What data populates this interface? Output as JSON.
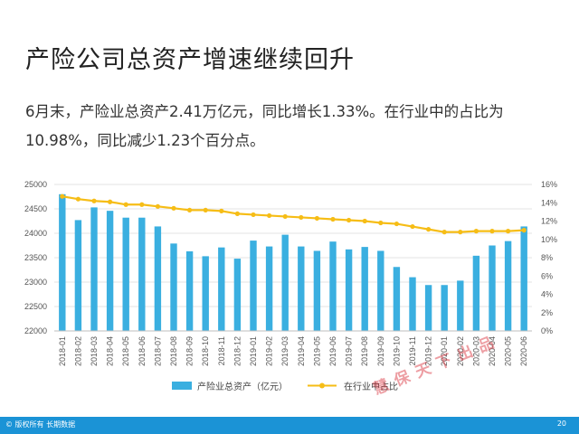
{
  "slide": {
    "title": "产险公司总资产增速继续回升",
    "summary_line1": "6月末，产险业总资产2.41万亿元，同比增长1.33%。在行业中的占比为",
    "summary_line2": "10.98%，同比减少1.23个百分点。",
    "footer_copyright": "© 版权所有 长期数据",
    "page_number": "20",
    "watermark": "慧保天下出品"
  },
  "colors": {
    "bar": "#3aafe0",
    "line": "#f6bd16",
    "footer": "#1b93d6",
    "grid": "#e3e3e3"
  },
  "chart_data": {
    "type": "bar",
    "categories": [
      "2018-01",
      "2018-02",
      "2018-03",
      "2018-04",
      "2018-05",
      "2018-06",
      "2018-07",
      "2018-08",
      "2018-09",
      "2018-10",
      "2018-11",
      "2018-12",
      "2019-01",
      "2019-02",
      "2019-03",
      "2019-04",
      "2019-05",
      "2019-06",
      "2019-07",
      "2019-08",
      "2019-09",
      "2019-10",
      "2019-11",
      "2019-12",
      "2020-01",
      "2020-02",
      "2020-03",
      "2020-04",
      "2020-05",
      "2020-06"
    ],
    "y_left": {
      "min": 22000,
      "max": 25000,
      "step": 500,
      "ticks": [
        "22000",
        "22500",
        "23000",
        "23500",
        "24000",
        "24500",
        "25000"
      ]
    },
    "y_right": {
      "min": 0,
      "max": 16,
      "step": 2,
      "ticks": [
        "0%",
        "2%",
        "4%",
        "6%",
        "8%",
        "10%",
        "12%",
        "14%",
        "16%"
      ]
    },
    "series": [
      {
        "name": "产险业总资产（亿元）",
        "type": "bar",
        "axis": "left",
        "values": [
          24800,
          24270,
          24530,
          24460,
          24320,
          24320,
          24140,
          23790,
          23630,
          23530,
          23710,
          23480,
          23850,
          23730,
          23970,
          23730,
          23640,
          23830,
          23670,
          23720,
          23640,
          23310,
          23100,
          22940,
          22940,
          23030,
          23540,
          23750,
          23840,
          24140
        ]
      },
      {
        "name": "在行业中占比",
        "type": "line",
        "axis": "right",
        "values": [
          14.7,
          14.4,
          14.2,
          14.1,
          13.8,
          13.8,
          13.6,
          13.4,
          13.2,
          13.2,
          13.1,
          12.8,
          12.7,
          12.6,
          12.5,
          12.4,
          12.3,
          12.2,
          12.1,
          12.0,
          11.8,
          11.7,
          11.4,
          11.1,
          10.8,
          10.8,
          10.9,
          10.9,
          10.9,
          11.0
        ]
      }
    ],
    "grid": true,
    "legend": "bottom"
  }
}
